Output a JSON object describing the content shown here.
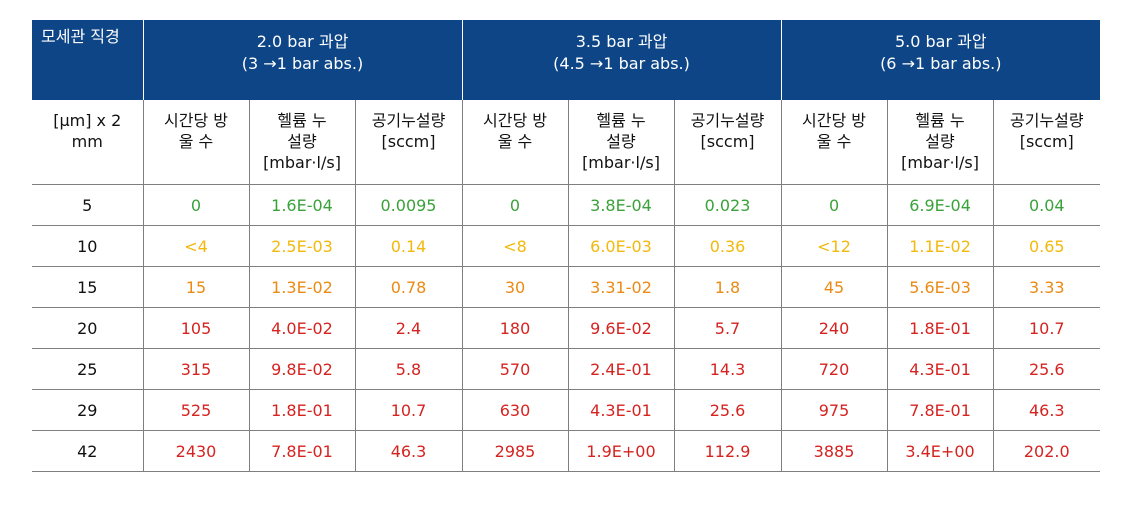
{
  "header": {
    "diameter_label": "모세관 직경",
    "groups": [
      {
        "line1": "2.0 bar 과압",
        "line2": "(3 →1 bar abs.)"
      },
      {
        "line1": "3.5 bar 과압",
        "line2": "(4.5 →1 bar abs.)"
      },
      {
        "line1": "5.0 bar 과압",
        "line2": "(6 →1 bar abs.)"
      }
    ],
    "diameter_unit_line1": "[μm] x 2",
    "diameter_unit_line2": "mm",
    "col_drops_line1": "시간당 방",
    "col_drops_line2": "울 수",
    "col_helium_line1": "헬륨 누",
    "col_helium_line2": "설량",
    "col_helium_line3": "[mbar·l/s]",
    "col_air_line1": "공기누설량",
    "col_air_line2": "[sccm]"
  },
  "colors": {
    "header_bg": "#0d4587",
    "green": "#3aa23a",
    "yellow": "#f2b90c",
    "orange": "#ec8a14",
    "red": "#d52320"
  },
  "rows": [
    [
      "5",
      "0",
      "1.6E-04",
      "0.0095",
      "0",
      "3.8E-04",
      "0.023",
      "0",
      "6.9E-04",
      "0.04"
    ],
    [
      "10",
      "<4",
      "2.5E-03",
      "0.14",
      "<8",
      "6.0E-03",
      "0.36",
      "<12",
      "1.1E-02",
      "0.65"
    ],
    [
      "15",
      "15",
      "1.3E-02",
      "0.78",
      "30",
      "3.31-02",
      "1.8",
      "45",
      "5.6E-03",
      "3.33"
    ],
    [
      "20",
      "105",
      "4.0E-02",
      "2.4",
      "180",
      "9.6E-02",
      "5.7",
      "240",
      "1.8E-01",
      "10.7"
    ],
    [
      "25",
      "315",
      "9.8E-02",
      "5.8",
      "570",
      "2.4E-01",
      "14.3",
      "720",
      "4.3E-01",
      "25.6"
    ],
    [
      "29",
      "525",
      "1.8E-01",
      "10.7",
      "630",
      "4.3E-01",
      "25.6",
      "975",
      "7.8E-01",
      "46.3"
    ],
    [
      "42",
      "2430",
      "7.8E-01",
      "46.3",
      "2985",
      "1.9E+00",
      "112.9",
      "3885",
      "3.4E+00",
      "202.0"
    ]
  ]
}
